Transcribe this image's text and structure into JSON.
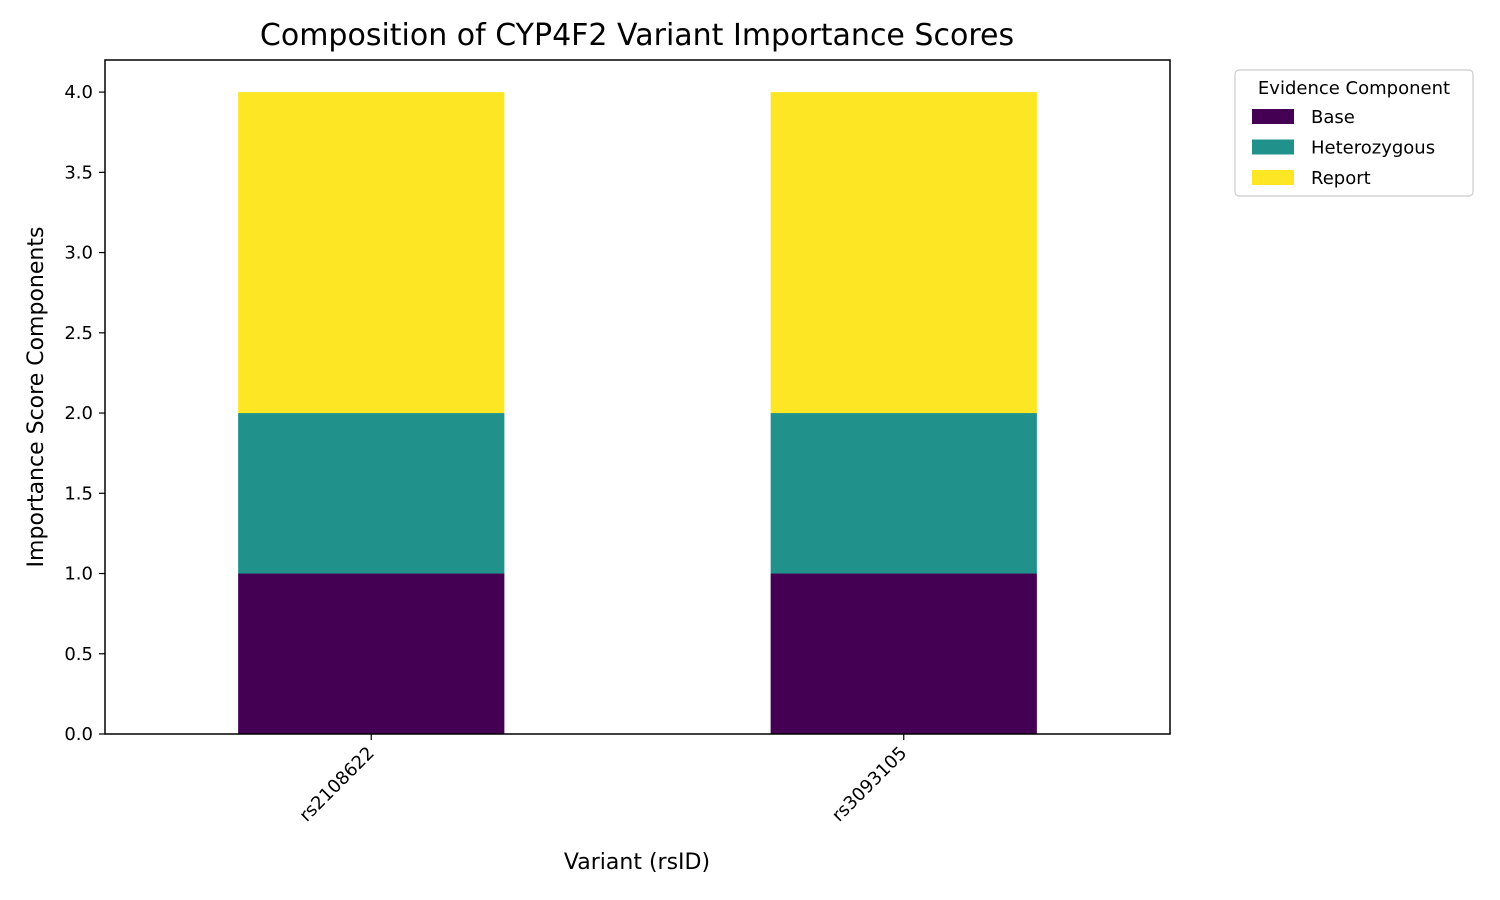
{
  "chart_data": {
    "type": "bar",
    "stacked": true,
    "title": "Composition of CYP4F2 Variant Importance Scores",
    "xlabel": "Variant (rsID)",
    "ylabel": "Importance Score Components",
    "categories": [
      "rs2108622",
      "rs3093105"
    ],
    "series": [
      {
        "name": "Base",
        "values": [
          1.0,
          1.0
        ],
        "color": "#440154"
      },
      {
        "name": "Heterozygous",
        "values": [
          1.0,
          1.0
        ],
        "color": "#21918c"
      },
      {
        "name": "Report",
        "values": [
          2.0,
          2.0
        ],
        "color": "#fde725"
      }
    ],
    "ylim": [
      0,
      4.2
    ],
    "yticks": [
      0.0,
      0.5,
      1.0,
      1.5,
      2.0,
      2.5,
      3.0,
      3.5,
      4.0
    ],
    "ytick_labels": [
      "0.0",
      "0.5",
      "1.0",
      "1.5",
      "2.0",
      "2.5",
      "3.0",
      "3.5",
      "4.0"
    ],
    "grid": false,
    "legend": {
      "title": "Evidence Component",
      "placement": "outside-top-right"
    }
  }
}
